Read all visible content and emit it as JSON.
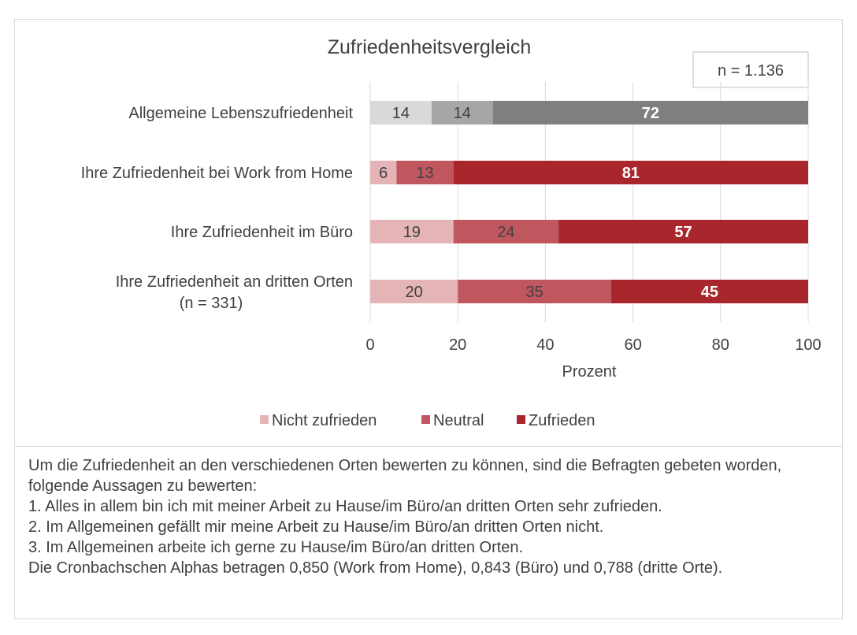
{
  "chart_data": {
    "type": "bar",
    "orientation": "horizontal",
    "stacked": true,
    "title": "Zufriedenheitsvergleich",
    "annotation": "n = 1.136",
    "xlabel": "Prozent",
    "xlim": [
      0,
      100
    ],
    "xticks": [
      "0",
      "20",
      "40",
      "60",
      "80",
      "100"
    ],
    "grid": true,
    "legend_position": "bottom",
    "categories": [
      [
        "Allgemeine Lebenszufriedenheit"
      ],
      [
        "Ihre Zufriedenheit bei Work from Home"
      ],
      [
        "Ihre Zufriedenheit im Büro"
      ],
      [
        "Ihre Zufriedenheit an dritten Orten",
        "(n = 331)"
      ]
    ],
    "series": [
      {
        "name": "Nicht zufrieden",
        "values": [
          14,
          6,
          19,
          20
        ]
      },
      {
        "name": "Neutral",
        "values": [
          14,
          13,
          24,
          35
        ]
      },
      {
        "name": "Zufrieden",
        "values": [
          72,
          81,
          57,
          45
        ]
      }
    ],
    "colors": {
      "row0": [
        "#d9d9d9",
        "#a6a6a6",
        "#7f7f7f"
      ],
      "rows": [
        "#e4b4b6",
        "#c0575e",
        "#a8262c"
      ],
      "legend": [
        "#e4b4b6",
        "#c0575e",
        "#a8262c"
      ]
    }
  },
  "note": {
    "lines": [
      "Um die Zufriedenheit an den verschiedenen Orten bewerten zu können, sind die Befragten gebeten worden, folgende Aussagen zu bewerten:",
      "1. Alles in allem bin ich mit meiner Arbeit zu Hause/im Büro/an dritten Orten sehr zufrieden.",
      "2. Im Allgemeinen gefällt mir meine Arbeit zu Hause/im Büro/an dritten Orten nicht.",
      "3. Im Allgemeinen arbeite ich gerne zu Hause/im Büro/an dritten Orten.",
      "Die Cronbachschen Alphas betragen 0,850 (Work from Home), 0,843 (Büro) und 0,788 (dritte Orte)."
    ]
  }
}
